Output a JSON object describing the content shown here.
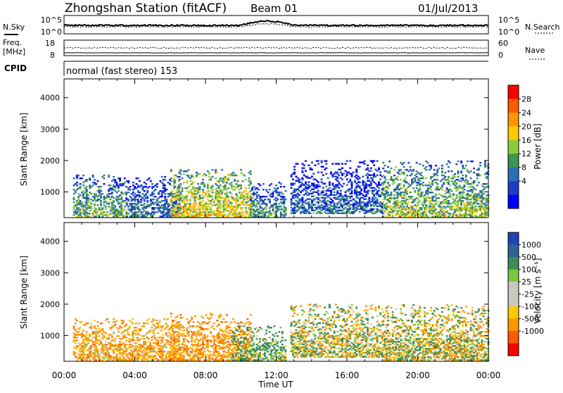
{
  "header": {
    "station": "Zhongshan Station (fitACF)",
    "beam": "Beam 01",
    "date": "01/Jul/2013"
  },
  "noise_panel": {
    "left_label": "N.Sky",
    "left_ticks": [
      "10^5",
      "10^0"
    ],
    "right_label": "N.Search",
    "right_ticks": [
      "10^5",
      "10^0"
    ]
  },
  "freq_panel": {
    "left_label": "Freq.",
    "left_unit": "[MHz]",
    "left_ticks": [
      "18",
      "8"
    ],
    "right_label": "Nave",
    "right_ticks": [
      "60",
      "0"
    ]
  },
  "cpid_panel": {
    "label": "CPID",
    "text": "normal (fast stereo) 153"
  },
  "chart_data": [
    {
      "type": "heatmap",
      "panel": "power",
      "ylabel": "Slant Range [km]",
      "yticks": [
        "4000",
        "3000",
        "2000",
        "1000"
      ],
      "xlabel": "Time UT",
      "xticks": [
        "00:00",
        "04:00",
        "08:00",
        "12:00",
        "16:00",
        "20:00",
        "00:00"
      ],
      "xlim_hours": [
        0,
        24
      ],
      "ylim_km": [
        180,
        4600
      ],
      "colorbar": {
        "label": "Power [dB]",
        "ticks": [
          "28",
          "24",
          "20",
          "16",
          "12",
          "8",
          "4"
        ],
        "colors": [
          "#ff0000",
          "#ff5a00",
          "#ff9600",
          "#ffc800",
          "#8ccd3c",
          "#3c9650",
          "#2d6eb4",
          "#1e3cc8",
          "#0000ff"
        ]
      },
      "echo_regions": [
        {
          "t": [
            0.5,
            3.5
          ],
          "r": [
            200,
            1550
          ],
          "mean_level": 14
        },
        {
          "t": [
            3.5,
            6.5
          ],
          "r": [
            200,
            1500
          ],
          "mean_level": 10
        },
        {
          "t": [
            6.0,
            10.5
          ],
          "r": [
            200,
            1700
          ],
          "mean_level": 20
        },
        {
          "t": [
            10.5,
            12.5
          ],
          "r": [
            200,
            1300
          ],
          "mean_level": 12
        },
        {
          "t": [
            12.8,
            18.0
          ],
          "r": [
            300,
            2000
          ],
          "mean_level": 9
        },
        {
          "t": [
            18.0,
            24.0
          ],
          "r": [
            200,
            2000
          ],
          "mean_level": 16
        }
      ]
    },
    {
      "type": "heatmap",
      "panel": "velocity",
      "ylabel": "Slant Range [km]",
      "yticks": [
        "4000",
        "3000",
        "2000",
        "1000"
      ],
      "xlabel": "Time UT",
      "xticks": [
        "00:00",
        "04:00",
        "08:00",
        "12:00",
        "16:00",
        "20:00",
        "00:00"
      ],
      "xlim_hours": [
        0,
        24
      ],
      "ylim_km": [
        180,
        4600
      ],
      "colorbar": {
        "label": "Velocity  [m s⁻¹]",
        "ticks": [
          "1000",
          "500",
          "100",
          "25",
          "-25",
          "-100",
          "-500",
          "-1000"
        ],
        "colors": [
          "#1e46b4",
          "#2d6496",
          "#3c8c5a",
          "#78c83c",
          "#c8c8c0",
          "#c8c8c0",
          "#ffc800",
          "#ff9600",
          "#ff5a00",
          "#ff0000"
        ]
      },
      "echo_regions": [
        {
          "t": [
            0.5,
            6.5
          ],
          "r": [
            200,
            1550
          ],
          "mean_velocity": -250
        },
        {
          "t": [
            6.0,
            10.5
          ],
          "r": [
            200,
            1700
          ],
          "mean_velocity": -300
        },
        {
          "t": [
            9.5,
            12.5
          ],
          "r": [
            200,
            1300
          ],
          "mean_velocity": 150
        },
        {
          "t": [
            12.8,
            18.0
          ],
          "r": [
            300,
            2000
          ],
          "mean_velocity": 0
        },
        {
          "t": [
            18.0,
            24.0
          ],
          "r": [
            200,
            2000
          ],
          "mean_velocity": 0
        }
      ]
    }
  ]
}
